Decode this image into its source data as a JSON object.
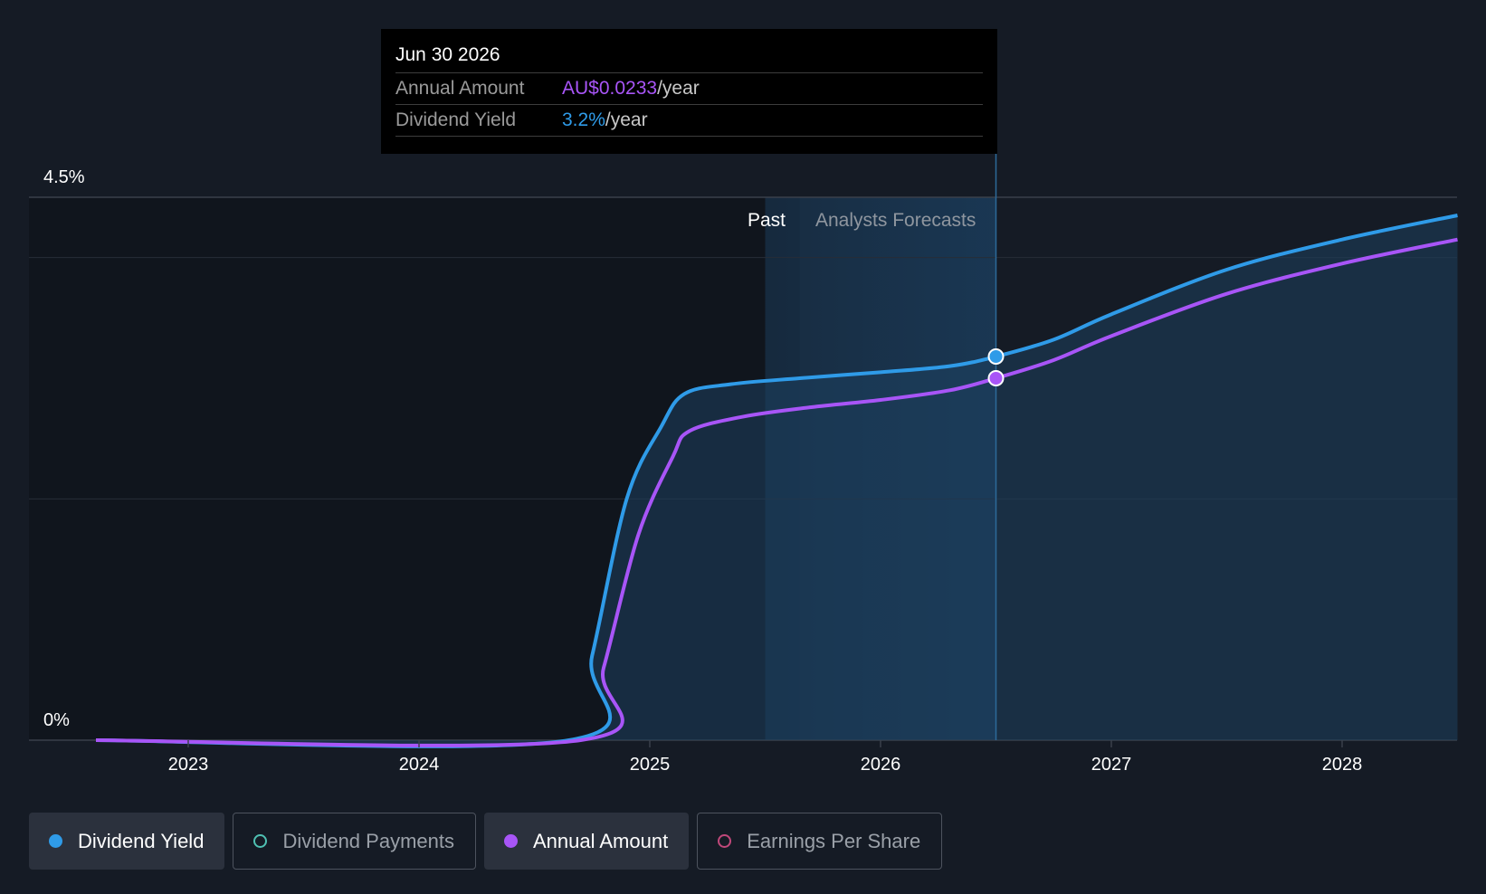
{
  "chart_data": {
    "type": "line",
    "y_tick_labels": [
      "4.5%",
      "0%"
    ],
    "ylim": [
      0,
      4.5
    ],
    "x_tick_labels": [
      "2023",
      "2024",
      "2025",
      "2026",
      "2027",
      "2028"
    ],
    "region_labels": {
      "past": "Past",
      "forecast": "Analysts Forecasts"
    },
    "series": [
      {
        "key": "dividend_yield",
        "color": "#2f9be8",
        "points": [
          [
            2022.6,
            0
          ],
          [
            2024.65,
            0
          ],
          [
            2024.75,
            0.7
          ],
          [
            2024.9,
            2.0
          ],
          [
            2025.05,
            2.6
          ],
          [
            2025.15,
            2.87
          ],
          [
            2025.35,
            2.95
          ],
          [
            2025.65,
            3.0
          ],
          [
            2026.0,
            3.05
          ],
          [
            2026.3,
            3.1
          ],
          [
            2026.5,
            3.18
          ],
          [
            2026.75,
            3.32
          ],
          [
            2027.0,
            3.53
          ],
          [
            2027.5,
            3.9
          ],
          [
            2028.0,
            4.15
          ],
          [
            2028.5,
            4.35
          ]
        ]
      },
      {
        "key": "annual_amount",
        "color": "#a855f7",
        "points": [
          [
            2022.6,
            0
          ],
          [
            2024.7,
            0
          ],
          [
            2024.8,
            0.6
          ],
          [
            2024.95,
            1.7
          ],
          [
            2025.1,
            2.35
          ],
          [
            2025.17,
            2.56
          ],
          [
            2025.4,
            2.68
          ],
          [
            2025.7,
            2.76
          ],
          [
            2026.0,
            2.82
          ],
          [
            2026.3,
            2.9
          ],
          [
            2026.5,
            3.0
          ],
          [
            2026.75,
            3.15
          ],
          [
            2027.0,
            3.35
          ],
          [
            2027.5,
            3.7
          ],
          [
            2028.0,
            3.95
          ],
          [
            2028.5,
            4.15
          ]
        ]
      }
    ],
    "past_boundary": 2025.65,
    "forecast_start": 2025.5,
    "hover": {
      "x": 2026.5,
      "date": "Jun 30 2026",
      "amount_label": "Annual Amount",
      "amount_value": "AU$0.0233",
      "amount_unit": "/year",
      "yield_label": "Dividend Yield",
      "yield_value": "3.2%",
      "yield_unit": "/year"
    }
  },
  "legend": [
    {
      "label": "Dividend Yield",
      "color": "#2f9be8",
      "active": true
    },
    {
      "label": "Dividend Payments",
      "color": "#4fc1b3",
      "active": false
    },
    {
      "label": "Annual Amount",
      "color": "#a855f7",
      "active": true
    },
    {
      "label": "Earnings Per Share",
      "color": "#c0487a",
      "active": false
    }
  ]
}
